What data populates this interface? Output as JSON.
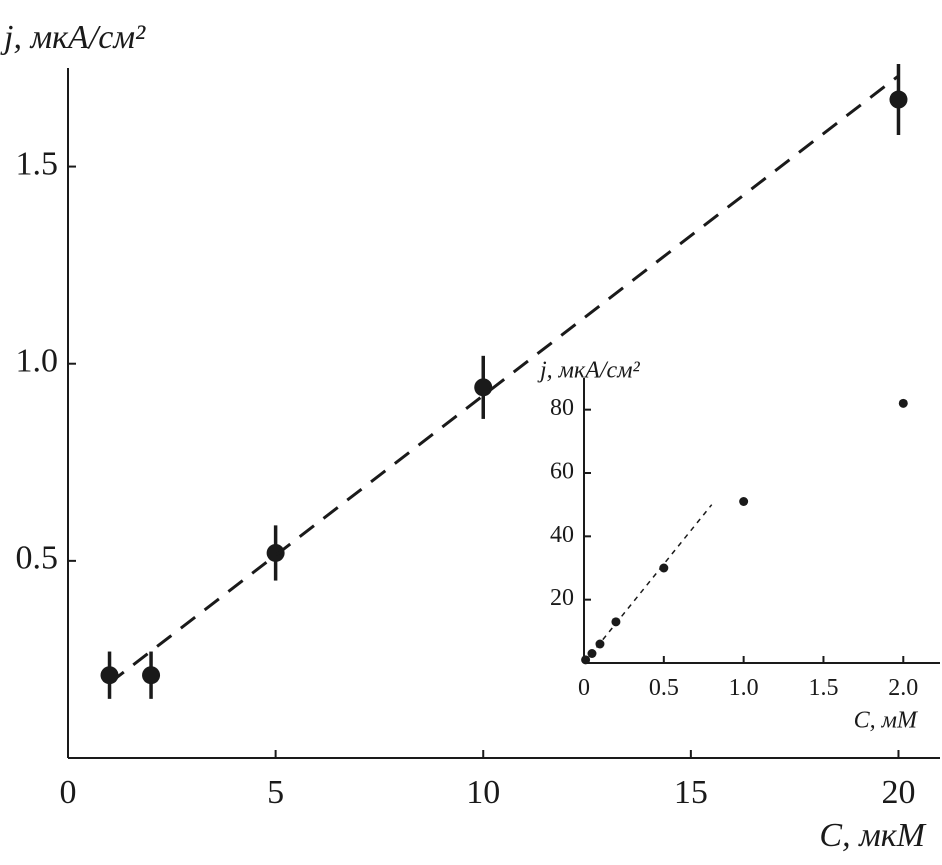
{
  "chart_data": [
    {
      "type": "scatter",
      "xlabel": "C, мкМ",
      "ylabel": "j, мкА/см²",
      "xlim": [
        0,
        21
      ],
      "ylim": [
        0,
        1.75
      ],
      "xticks": [
        0,
        5,
        10,
        15,
        20
      ],
      "yticks": [
        0.5,
        {
          "value": 1,
          "label": "1.0"
        },
        1.5
      ],
      "series": [
        {
          "mode": "markers",
          "color": "#1a1a1a",
          "x": [
            1,
            2,
            5,
            10,
            20
          ],
          "values": [
            0.21,
            0.21,
            0.52,
            0.94,
            1.67
          ],
          "errors": [
            0.06,
            0.06,
            0.07,
            0.08,
            0.09
          ]
        },
        {
          "mode": "dashed",
          "color": "#1a1a1a",
          "x": [
            1,
            20
          ],
          "values": [
            0.19,
            1.73
          ]
        }
      ]
    },
    {
      "type": "scatter",
      "xlabel": "C, мМ",
      "ylabel": "j, мкА/см²",
      "xlim": [
        0,
        2.23
      ],
      "ylim": [
        0,
        90
      ],
      "xticks": [
        0,
        0.5,
        {
          "value": 1,
          "label": "1.0"
        },
        1.5,
        {
          "value": 2,
          "label": "2.0"
        }
      ],
      "yticks": [
        20,
        40,
        60,
        80
      ],
      "series": [
        {
          "mode": "markers",
          "color": "#1a1a1a",
          "x": [
            0.01,
            0.05,
            0.1,
            0.2,
            0.5,
            1,
            2
          ],
          "values": [
            1,
            3,
            6,
            13,
            30,
            51,
            82
          ]
        },
        {
          "mode": "dotted",
          "color": "#1a1a1a",
          "x": [
            0,
            0.8
          ],
          "values": [
            0,
            50
          ]
        }
      ]
    }
  ]
}
